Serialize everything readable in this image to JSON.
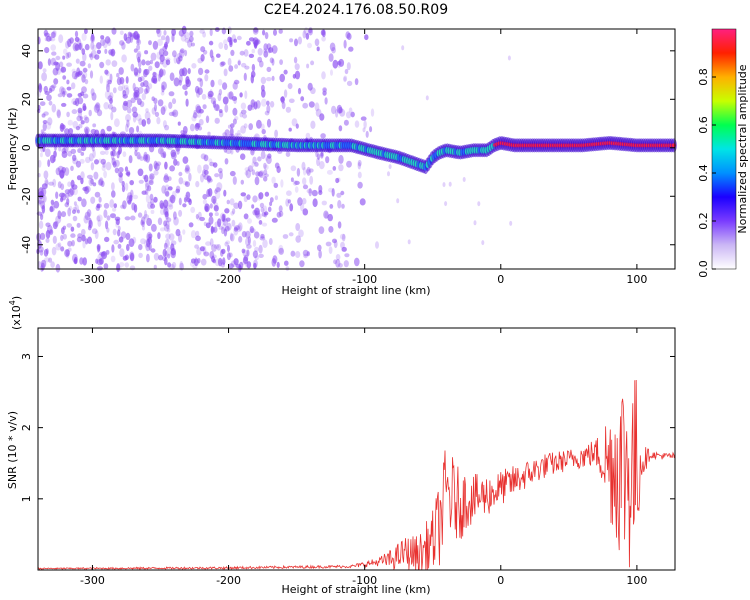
{
  "title": "C2E4.2024.176.08.50.R09",
  "colors": {
    "snr_line": "#e8312f",
    "spectro_point": "#8a4cf0",
    "spectro_core": "#3a00d0"
  },
  "chart_data": [
    {
      "type": "heatmap",
      "xlabel": "Height of straight line (km)",
      "ylabel": "Frequency (Hz)",
      "xlim": [
        -340,
        128
      ],
      "ylim": [
        -50,
        49
      ],
      "xticks": [
        -300,
        -200,
        -100,
        0,
        100
      ],
      "yticks": [
        -40,
        -20,
        0,
        20,
        40
      ],
      "colorbar": {
        "label": "Normalized spectral amplitude",
        "range": [
          0,
          1
        ],
        "ticks": [
          "0.0",
          "0.2",
          "0.4",
          "0.6",
          "0.8"
        ],
        "tick_values": [
          0.0,
          0.2,
          0.4,
          0.6,
          0.8
        ],
        "colormap": [
          "#ffffff",
          "#cbb7f5",
          "#7a3cff",
          "#1b00ff",
          "#0090ff",
          "#00e5e5",
          "#00ff50",
          "#c8ff00",
          "#ffb000",
          "#ff2000",
          "#ff2080"
        ]
      },
      "ridge": {
        "x": [
          -340,
          -300,
          -250,
          -200,
          -150,
          -110,
          -90,
          -75,
          -65,
          -55,
          -50,
          -45,
          -40,
          -30,
          -20,
          -10,
          -5,
          0,
          10,
          30,
          60,
          80,
          100,
          128
        ],
        "y": [
          3,
          3,
          3,
          2,
          1,
          1,
          -2,
          -4,
          -6,
          -8,
          -4,
          -2,
          -1,
          -2,
          -1,
          -1,
          1,
          2,
          1,
          1,
          1,
          2,
          1,
          1
        ]
      },
      "grid": false
    },
    {
      "type": "line",
      "xlabel": "Height of straight line (km)",
      "ylabel": "SNR (10 * v/v)",
      "y_multiplier": "(x10",
      "y_multiplier_exp": "4",
      "y_multiplier_close": ")",
      "xlim": [
        -340,
        128
      ],
      "ylim": [
        0,
        3.4
      ],
      "xticks": [
        -300,
        -200,
        -100,
        0,
        100
      ],
      "yticks": [
        1,
        2,
        3
      ],
      "envelope": {
        "x": [
          -340,
          -200,
          -110,
          -100,
          -80,
          -70,
          -60,
          -50,
          -45,
          -40,
          -35,
          -30,
          -25,
          -20,
          -10,
          0,
          10,
          20,
          30,
          40,
          50,
          60,
          70,
          75,
          80,
          85,
          88,
          92,
          95,
          100,
          105,
          110,
          120,
          128
        ],
        "y": [
          0.02,
          0.03,
          0.05,
          0.08,
          0.15,
          0.25,
          0.2,
          0.4,
          0.65,
          1.1,
          1.0,
          0.9,
          1.0,
          1.0,
          1.05,
          1.15,
          1.25,
          1.35,
          1.45,
          1.5,
          1.55,
          1.6,
          1.65,
          1.6,
          1.5,
          1.5,
          1.5,
          1.45,
          1.4,
          1.45,
          1.55,
          1.62,
          1.6,
          1.6
        ]
      },
      "spread": {
        "x": [
          -340,
          -110,
          -90,
          -80,
          -60,
          -50,
          -45,
          -40,
          -30,
          -20,
          -10,
          0,
          20,
          50,
          70,
          80,
          85,
          90,
          95,
          100,
          103,
          110,
          128
        ],
        "y": [
          0.01,
          0.02,
          0.06,
          0.15,
          0.3,
          0.45,
          0.6,
          0.7,
          0.5,
          0.35,
          0.3,
          0.25,
          0.2,
          0.15,
          0.2,
          0.8,
          1.2,
          1.4,
          1.5,
          1.3,
          0.3,
          0.05,
          0.05
        ]
      }
    }
  ]
}
